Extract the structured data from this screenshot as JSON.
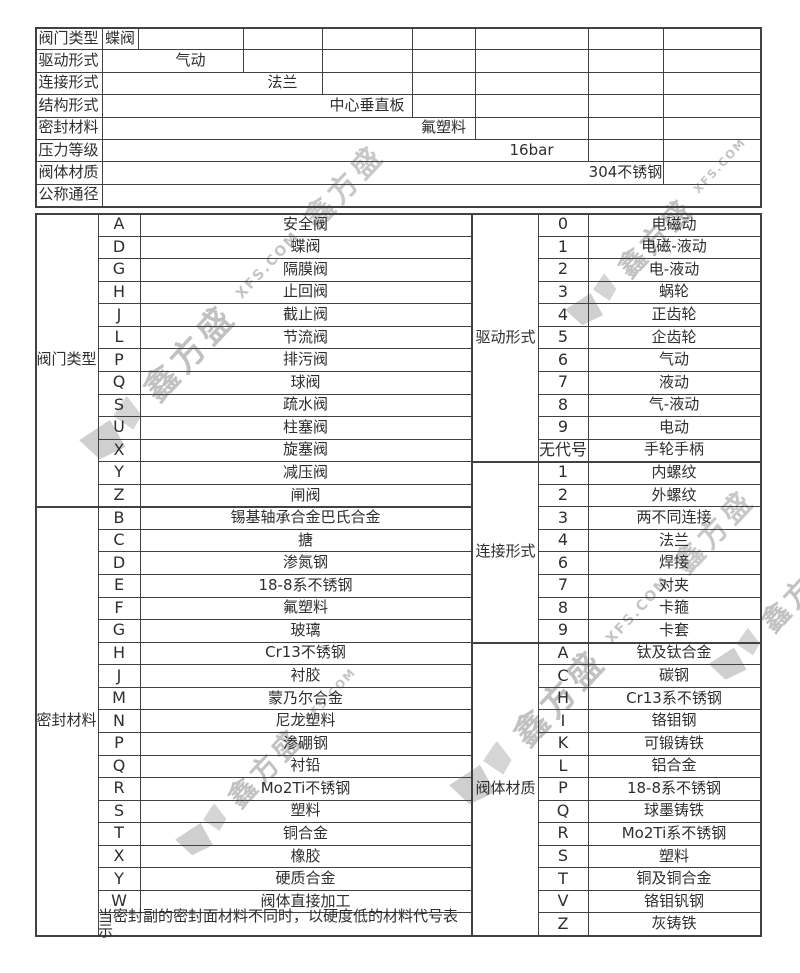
{
  "watermark": {
    "cn": "鑫方盛",
    "en": "XFS.COM"
  },
  "spec_table": {
    "rows": [
      {
        "label": "阀门类型",
        "value": "蝶阀"
      },
      {
        "label": "驱动形式",
        "value": "气动"
      },
      {
        "label": "连接形式",
        "value": "法兰"
      },
      {
        "label": "结构形式",
        "value": "中心垂直板"
      },
      {
        "label": "密封材料",
        "value": "氟塑料"
      },
      {
        "label": "压力等级",
        "value": "16bar"
      },
      {
        "label": "阀体材质",
        "value": "304不锈钢"
      },
      {
        "label": "公称通径",
        "value": ""
      }
    ]
  },
  "code_tables": {
    "left": {
      "sections": [
        {
          "label": "阀门类型",
          "rows": [
            [
              "A",
              "安全阀"
            ],
            [
              "D",
              "蝶阀"
            ],
            [
              "G",
              "隔膜阀"
            ],
            [
              "H",
              "止回阀"
            ],
            [
              "J",
              "截止阀"
            ],
            [
              "L",
              "节流阀"
            ],
            [
              "P",
              "排污阀"
            ],
            [
              "Q",
              "球阀"
            ],
            [
              "S",
              "疏水阀"
            ],
            [
              "U",
              "柱塞阀"
            ],
            [
              "X",
              "旋塞阀"
            ],
            [
              "Y",
              "减压阀"
            ],
            [
              "Z",
              "闸阀"
            ]
          ]
        },
        {
          "label": "密封材料",
          "rows": [
            [
              "B",
              "锡基轴承合金巴氏合金"
            ],
            [
              "C",
              "搪"
            ],
            [
              "D",
              "渗氮钢"
            ],
            [
              "E",
              "18-8系不锈钢"
            ],
            [
              "F",
              "氟塑料"
            ],
            [
              "G",
              "玻璃"
            ],
            [
              "H",
              "Cr13不锈钢"
            ],
            [
              "J",
              "衬胶"
            ],
            [
              "M",
              "蒙乃尔合金"
            ],
            [
              "N",
              "尼龙塑料"
            ],
            [
              "P",
              "渗硼钢"
            ],
            [
              "Q",
              "衬铅"
            ],
            [
              "R",
              "Mo2Ti不锈钢"
            ],
            [
              "S",
              "塑料"
            ],
            [
              "T",
              "铜合金"
            ],
            [
              "X",
              "橡胶"
            ],
            [
              "Y",
              "硬质合金"
            ],
            [
              "W",
              "阀体直接加工"
            ]
          ],
          "note": "当密封副的密封面材料不同时，以硬度低的材料代号表示"
        }
      ]
    },
    "right": {
      "sections": [
        {
          "label": "驱动形式",
          "rows": [
            [
              "0",
              "电磁动"
            ],
            [
              "1",
              "电磁-液动"
            ],
            [
              "2",
              "电-液动"
            ],
            [
              "3",
              "蜗轮"
            ],
            [
              "4",
              "正齿轮"
            ],
            [
              "5",
              "企齿轮"
            ],
            [
              "6",
              "气动"
            ],
            [
              "7",
              "液动"
            ],
            [
              "8",
              "气-液动"
            ],
            [
              "9",
              "电动"
            ],
            [
              "无代号",
              "手轮手柄"
            ]
          ]
        },
        {
          "label": "连接形式",
          "rows": [
            [
              "1",
              "内螺纹"
            ],
            [
              "2",
              "外螺纹"
            ],
            [
              "3",
              "两不同连接"
            ],
            [
              "4",
              "法兰"
            ],
            [
              "6",
              "焊接"
            ],
            [
              "7",
              "对夹"
            ],
            [
              "8",
              "卡箍"
            ],
            [
              "9",
              "卡套"
            ]
          ]
        },
        {
          "label": "阀体材质",
          "rows": [
            [
              "A",
              "钛及钛合金"
            ],
            [
              "C",
              "碳钢"
            ],
            [
              "H",
              "Cr13系不锈钢"
            ],
            [
              "I",
              "铬钼钢"
            ],
            [
              "K",
              "可锻铸铁"
            ],
            [
              "L",
              "铝合金"
            ],
            [
              "P",
              "18-8系不锈钢"
            ],
            [
              "Q",
              "球墨铸铁"
            ],
            [
              "R",
              "Mo2Ti系不锈钢"
            ],
            [
              "S",
              "塑料"
            ],
            [
              "T",
              "铜及铜合金"
            ],
            [
              "V",
              "铬钼钒钢"
            ],
            [
              "Z",
              "灰铸铁"
            ]
          ]
        }
      ]
    }
  },
  "colors": {
    "border": "#414141",
    "text": "#2e2e2e",
    "watermark_gray": "#9a9a9a"
  }
}
